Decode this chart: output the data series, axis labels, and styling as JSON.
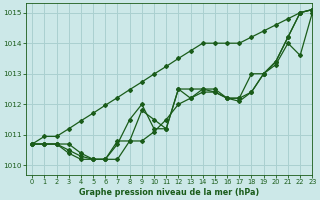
{
  "title": "Graphe pression niveau de la mer (hPa)",
  "bg_color": "#cce8e8",
  "grid_color": "#aad0d0",
  "line_color": "#1a5c1a",
  "xlim": [
    -0.5,
    23
  ],
  "ylim": [
    1009.7,
    1015.3
  ],
  "xticks": [
    0,
    1,
    2,
    3,
    4,
    5,
    6,
    7,
    8,
    9,
    10,
    11,
    12,
    13,
    14,
    15,
    16,
    17,
    18,
    19,
    20,
    21,
    22,
    23
  ],
  "yticks": [
    1010,
    1011,
    1012,
    1013,
    1014,
    1015
  ],
  "series": [
    [
      1010.7,
      1010.7,
      1010.7,
      1010.7,
      1010.4,
      1010.2,
      1010.2,
      1010.8,
      1010.8,
      1010.8,
      1011.1,
      1011.5,
      1012.0,
      1012.2,
      1012.4,
      1012.4,
      1012.2,
      1012.1,
      1012.4,
      1013.0,
      1013.3,
      1014.0,
      1013.6,
      1015.0
    ],
    [
      1010.7,
      1010.7,
      1010.7,
      1010.5,
      1010.3,
      1010.2,
      1010.2,
      1010.7,
      1011.5,
      1012.0,
      1011.2,
      1011.2,
      1012.5,
      1012.5,
      1012.5,
      1012.5,
      1012.2,
      1012.2,
      1013.0,
      1013.0,
      1013.4,
      1014.2,
      1015.0,
      1015.1
    ],
    [
      1010.7,
      1010.7,
      1010.7,
      1010.4,
      1010.2,
      1010.2,
      1010.2,
      1010.2,
      1010.8,
      1011.8,
      1011.5,
      1011.2,
      1012.5,
      1012.2,
      1012.5,
      1012.4,
      1012.2,
      1012.2,
      1012.4,
      1013.0,
      1013.4,
      1014.2,
      1015.0,
      1015.1
    ],
    [
      1010.7,
      1010.95,
      1010.95,
      1011.2,
      1011.46,
      1011.71,
      1011.97,
      1012.22,
      1012.48,
      1012.73,
      1012.99,
      1013.24,
      1013.5,
      1013.75,
      1014.0,
      1014.0,
      1014.0,
      1014.0,
      1014.2,
      1014.4,
      1014.6,
      1014.8,
      1015.0,
      1015.1
    ]
  ]
}
